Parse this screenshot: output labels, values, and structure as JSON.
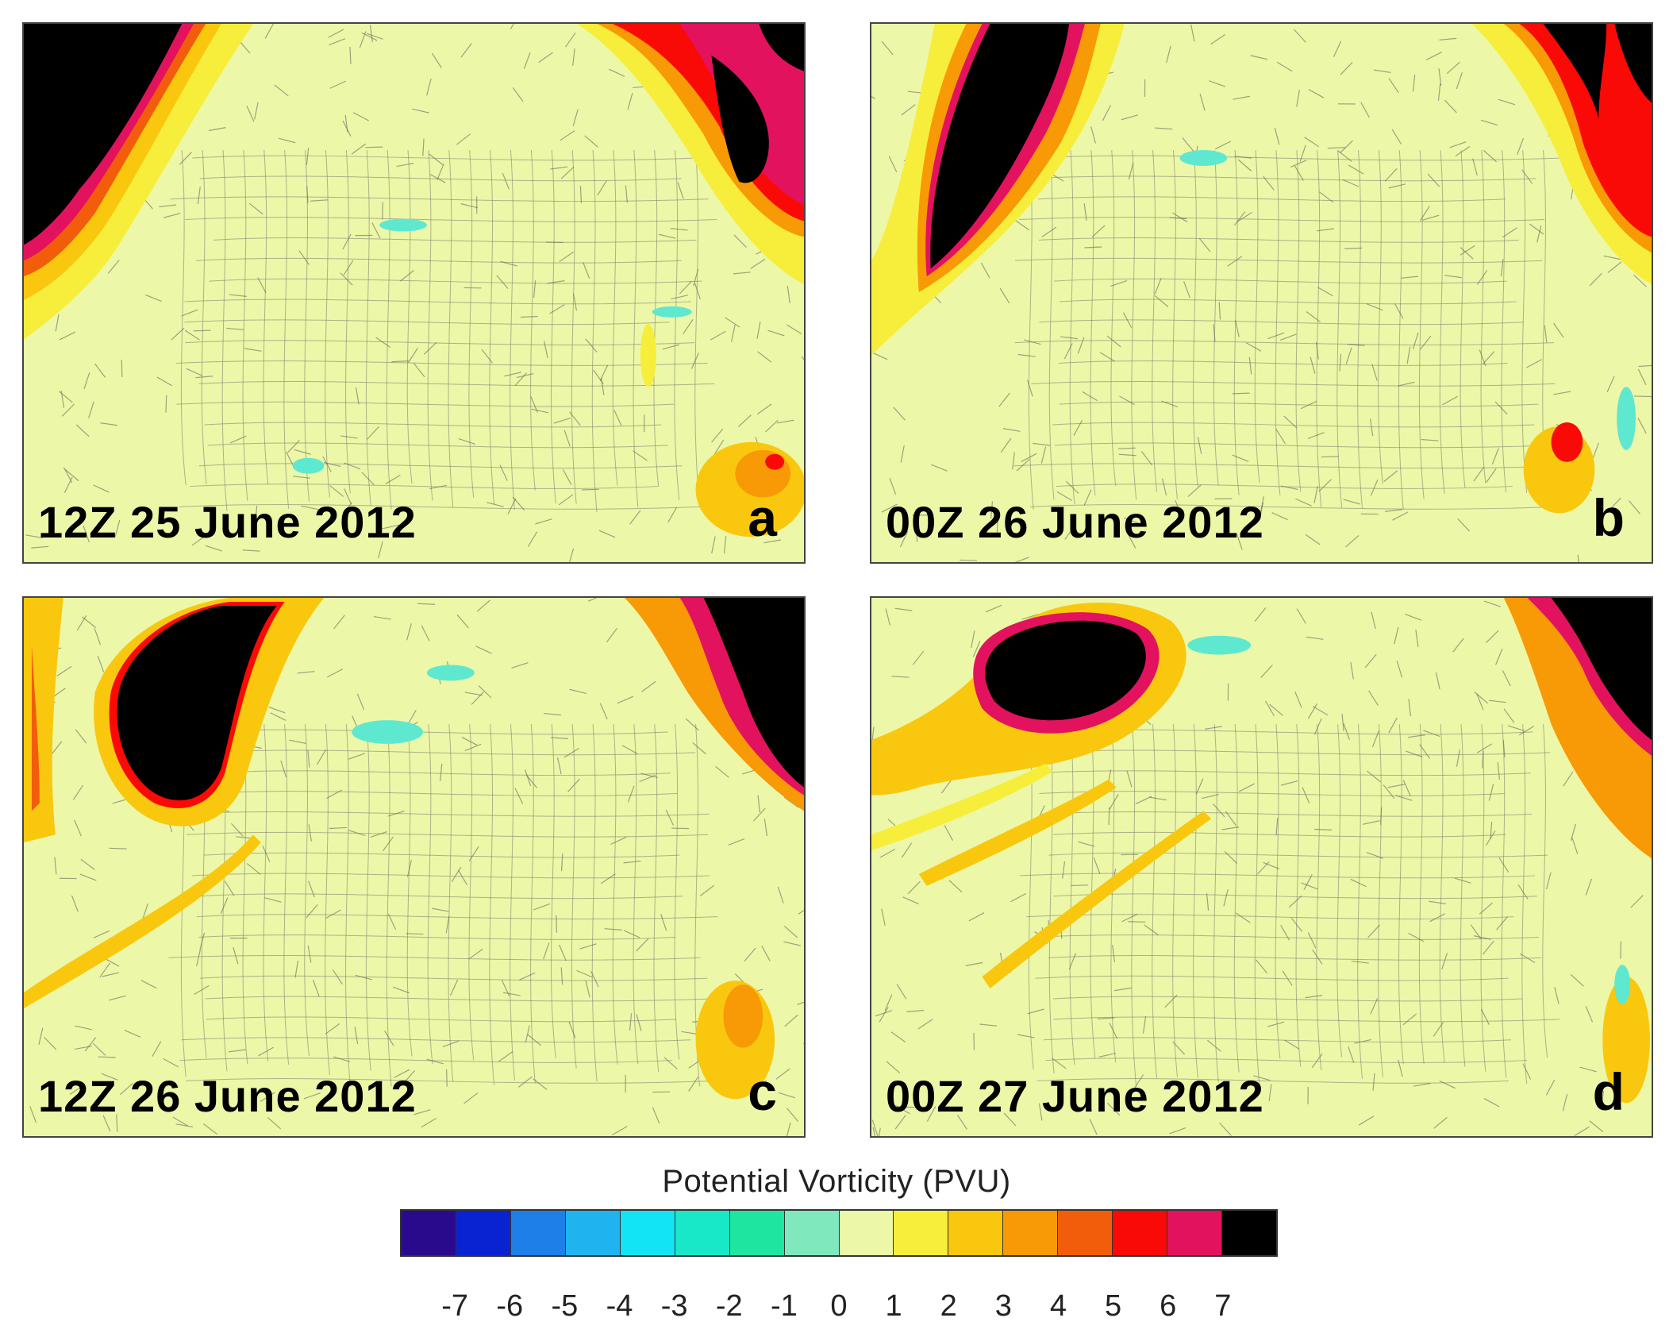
{
  "panels": [
    {
      "time": "12Z 25 June 2012",
      "letter": "a"
    },
    {
      "time": "00Z 26 June 2012",
      "letter": "b"
    },
    {
      "time": "12Z 26 June 2012",
      "letter": "c"
    },
    {
      "time": "00Z 27 June 2012",
      "letter": "d"
    }
  ],
  "colorbar": {
    "title": "Potential Vorticity  (PVU)",
    "ticks": [
      "-7",
      "-6",
      "-5",
      "-4",
      "-3",
      "-2",
      "-1",
      "0",
      "1",
      "2",
      "3",
      "4",
      "5",
      "6",
      "7"
    ],
    "colors": [
      "#2a0a8c",
      "#0a23d2",
      "#1f7fe8",
      "#1fb4f0",
      "#12e4f5",
      "#18e8c8",
      "#1ee6a0",
      "#7fe8bd",
      "#ecf7a8",
      "#f7ee3c",
      "#f9c80e",
      "#f79a06",
      "#f25d0b",
      "#fa0a06",
      "#e3125e",
      "#000000"
    ]
  },
  "map_colors": {
    "background": "#ecf7a8",
    "pv_1_2": "#f7ee3c",
    "pv_2_3": "#f9c80e",
    "pv_3_4": "#f79a06",
    "pv_4_5": "#f25d0b",
    "pv_5_6": "#fa0a06",
    "pv_6_7": "#e3125e",
    "pv_gt7": "#000000",
    "pv_neg": "#5fe8d0",
    "map_lines": "#555555"
  }
}
